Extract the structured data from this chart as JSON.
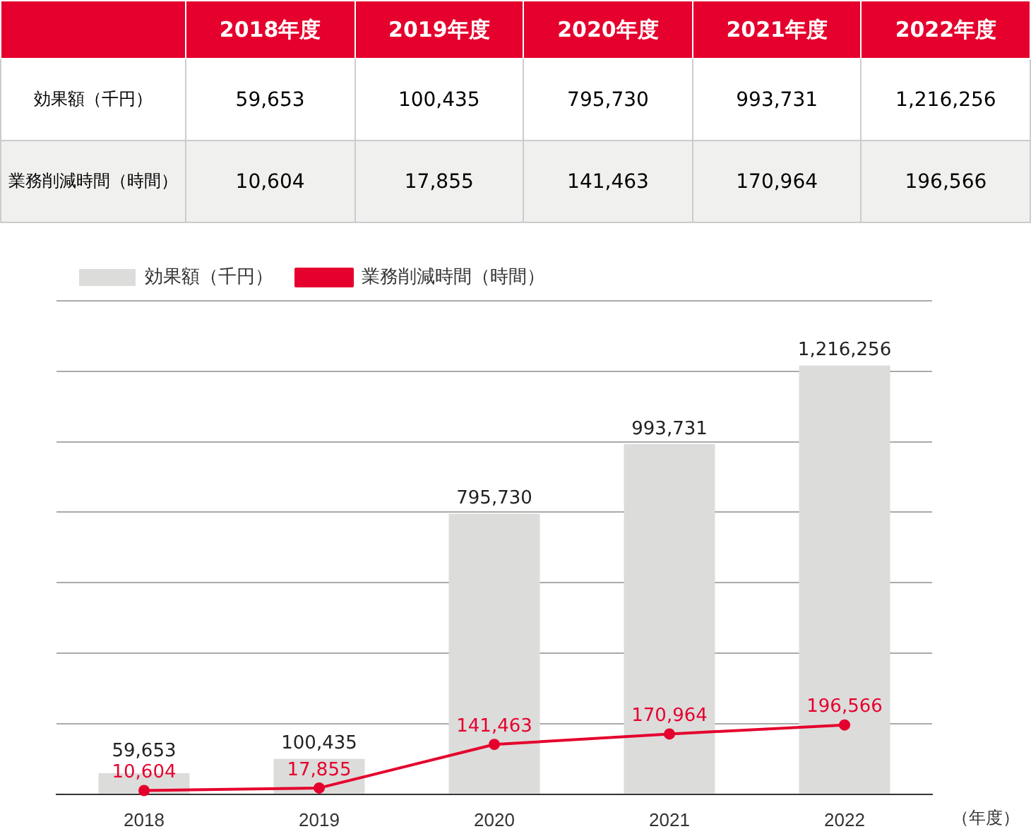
{
  "chart_data": {
    "type": "bar",
    "categories": [
      "2018",
      "2019",
      "2020",
      "2021",
      "2022"
    ],
    "xlabel": "（年度）",
    "annotations": [
      "2018年度",
      "2019年度",
      "2020年度",
      "2021年度",
      "2022年度"
    ],
    "series": [
      {
        "name": "効果額（千円）",
        "color": "#dcdcdb",
        "values": [
          59653,
          100435,
          795730,
          993731,
          1216256
        ],
        "value_labels": [
          "59,653",
          "100,435",
          "795,730",
          "993,731",
          "1,216,256"
        ]
      },
      {
        "name": "業務削減時間（時間）",
        "type": "line",
        "color": "#e5002d",
        "values": [
          10604,
          17855,
          141463,
          170964,
          196566
        ],
        "value_labels": [
          "10,604",
          "17,855",
          "141,463",
          "170,964",
          "196,566"
        ]
      }
    ],
    "grid": "y",
    "legend": "top left",
    "tick_labels": "x",
    "marker": "circle",
    "line_style": "solid"
  }
}
